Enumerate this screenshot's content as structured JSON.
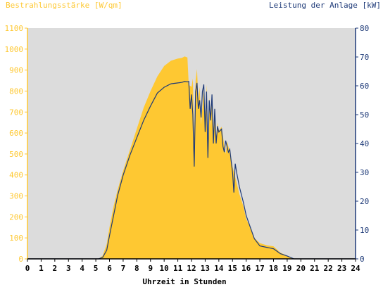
{
  "colors": {
    "irradiance": "#fec832",
    "power": "#1e3a78",
    "plot_background": "#dcdcdc",
    "left_axis": "#fec832",
    "right_axis": "#1e3a78",
    "x_axis": "#000000"
  },
  "chart_data": {
    "type": "area",
    "left_title": "Bestrahlungsstärke [W/qm]",
    "right_title": "Leistung der Anlage [kW]",
    "xlabel": "Uhrzeit in Stunden",
    "xlim": [
      0,
      24
    ],
    "ylim_left": [
      0,
      1100
    ],
    "ylim_right": [
      0,
      80
    ],
    "x_ticks": [
      "0",
      "1",
      "2",
      "3",
      "4",
      "5",
      "6",
      "7",
      "8",
      "9",
      "10",
      "11",
      "12",
      "13",
      "14",
      "15",
      "16",
      "17",
      "18",
      "19",
      "20",
      "21",
      "22",
      "23",
      "24"
    ],
    "y_left_ticks": [
      "0",
      "100",
      "200",
      "300",
      "400",
      "500",
      "600",
      "700",
      "800",
      "900",
      "1000",
      "1100"
    ],
    "y_right_ticks": [
      "0",
      "10",
      "20",
      "30",
      "40",
      "50",
      "60",
      "70",
      "80"
    ],
    "series": [
      {
        "name": "Bestrahlungsstärke [W/qm]",
        "axis": "left",
        "style": "filled-area",
        "points": [
          [
            0,
            0
          ],
          [
            5.2,
            0
          ],
          [
            5.5,
            15
          ],
          [
            5.8,
            70
          ],
          [
            6.0,
            150
          ],
          [
            6.3,
            250
          ],
          [
            6.6,
            330
          ],
          [
            7.0,
            420
          ],
          [
            7.5,
            520
          ],
          [
            8.0,
            620
          ],
          [
            8.5,
            720
          ],
          [
            9.0,
            800
          ],
          [
            9.5,
            870
          ],
          [
            10.0,
            920
          ],
          [
            10.5,
            945
          ],
          [
            11.0,
            955
          ],
          [
            11.3,
            958
          ],
          [
            11.5,
            965
          ],
          [
            11.7,
            960
          ],
          [
            11.8,
            830
          ],
          [
            12.0,
            820
          ],
          [
            12.1,
            860
          ],
          [
            12.2,
            580
          ],
          [
            12.3,
            850
          ],
          [
            12.4,
            905
          ],
          [
            12.5,
            760
          ],
          [
            12.6,
            820
          ],
          [
            12.7,
            640
          ],
          [
            12.8,
            720
          ],
          [
            12.9,
            820
          ],
          [
            13.0,
            680
          ],
          [
            13.1,
            830
          ],
          [
            13.2,
            560
          ],
          [
            13.3,
            770
          ],
          [
            13.4,
            630
          ],
          [
            13.5,
            780
          ],
          [
            13.6,
            620
          ],
          [
            13.7,
            720
          ],
          [
            13.8,
            560
          ],
          [
            13.9,
            650
          ],
          [
            14.0,
            610
          ],
          [
            14.2,
            630
          ],
          [
            14.4,
            540
          ],
          [
            14.5,
            500
          ],
          [
            14.6,
            560
          ],
          [
            14.8,
            510
          ],
          [
            15.0,
            440
          ],
          [
            15.2,
            390
          ],
          [
            15.5,
            310
          ],
          [
            15.8,
            250
          ],
          [
            16.0,
            190
          ],
          [
            16.3,
            150
          ],
          [
            16.6,
            100
          ],
          [
            17.0,
            75
          ],
          [
            17.5,
            65
          ],
          [
            18.0,
            60
          ],
          [
            18.5,
            30
          ],
          [
            19.0,
            15
          ],
          [
            19.5,
            0
          ],
          [
            24,
            0
          ]
        ]
      },
      {
        "name": "Leistung der Anlage [kW]",
        "axis": "right",
        "style": "line",
        "points": [
          [
            0,
            0
          ],
          [
            5.2,
            0
          ],
          [
            5.5,
            0.5
          ],
          [
            5.8,
            3
          ],
          [
            6.0,
            8
          ],
          [
            6.3,
            15
          ],
          [
            6.6,
            22
          ],
          [
            7.0,
            29
          ],
          [
            7.5,
            36
          ],
          [
            8.0,
            42
          ],
          [
            8.5,
            48
          ],
          [
            9.0,
            53
          ],
          [
            9.5,
            57.5
          ],
          [
            10.0,
            59.5
          ],
          [
            10.5,
            60.7
          ],
          [
            11.0,
            61
          ],
          [
            11.3,
            61.2
          ],
          [
            11.5,
            61.5
          ],
          [
            11.7,
            61.4
          ],
          [
            11.8,
            61.5
          ],
          [
            11.9,
            52
          ],
          [
            12.0,
            57
          ],
          [
            12.1,
            50
          ],
          [
            12.2,
            32
          ],
          [
            12.3,
            58
          ],
          [
            12.4,
            61
          ],
          [
            12.5,
            52
          ],
          [
            12.6,
            55
          ],
          [
            12.7,
            49
          ],
          [
            12.8,
            58
          ],
          [
            12.9,
            60.5
          ],
          [
            13.0,
            44
          ],
          [
            13.1,
            58
          ],
          [
            13.2,
            35
          ],
          [
            13.3,
            55
          ],
          [
            13.4,
            48
          ],
          [
            13.5,
            57
          ],
          [
            13.6,
            40
          ],
          [
            13.7,
            52
          ],
          [
            13.8,
            40
          ],
          [
            13.9,
            46
          ],
          [
            14.0,
            44
          ],
          [
            14.2,
            45
          ],
          [
            14.3,
            39
          ],
          [
            14.4,
            37
          ],
          [
            14.5,
            41
          ],
          [
            14.7,
            37
          ],
          [
            14.8,
            38
          ],
          [
            14.9,
            34
          ],
          [
            15.0,
            30
          ],
          [
            15.1,
            23
          ],
          [
            15.2,
            33
          ],
          [
            15.3,
            30
          ],
          [
            15.5,
            25
          ],
          [
            15.8,
            19.5
          ],
          [
            16.0,
            15
          ],
          [
            16.3,
            11
          ],
          [
            16.6,
            7
          ],
          [
            17.0,
            4.5
          ],
          [
            17.5,
            4
          ],
          [
            18.0,
            3.5
          ],
          [
            18.5,
            1.8
          ],
          [
            19.0,
            1
          ],
          [
            19.5,
            0
          ],
          [
            24,
            0
          ]
        ]
      }
    ]
  }
}
